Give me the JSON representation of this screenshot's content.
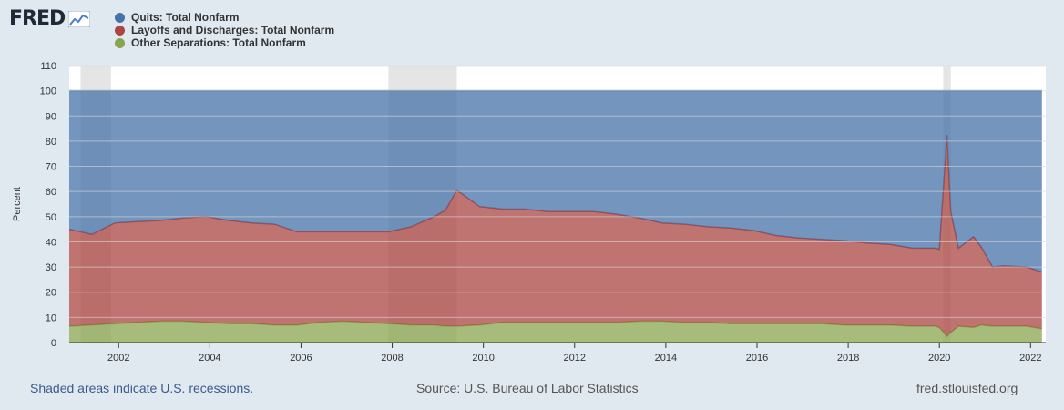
{
  "logo": {
    "text": "FRED",
    "icon": "line-graph-icon"
  },
  "legend": [
    {
      "label": "Quits: Total Nonfarm",
      "color": "#4572a7"
    },
    {
      "label": "Layoffs and Discharges: Total Nonfarm",
      "color": "#aa4643"
    },
    {
      "label": "Other Separations: Total Nonfarm",
      "color": "#89a54e"
    }
  ],
  "footer": {
    "recession_note": "Shaded areas indicate U.S. recessions.",
    "source": "Source: U.S. Bureau of Labor Statistics",
    "site": "fred.stlouisfed.org"
  },
  "chart_data": {
    "type": "area",
    "stacking": "percent",
    "ylabel": "Percent",
    "ylim": [
      0,
      110
    ],
    "yticks": [
      0,
      10,
      20,
      30,
      40,
      50,
      60,
      70,
      80,
      90,
      100,
      110
    ],
    "xlim": [
      "2000-12",
      "2022-05"
    ],
    "xticks": [
      "2002",
      "2004",
      "2006",
      "2008",
      "2010",
      "2012",
      "2014",
      "2016",
      "2018",
      "2020",
      "2022"
    ],
    "grid": true,
    "recessions": [
      {
        "start": "2001-03",
        "end": "2001-11"
      },
      {
        "start": "2007-12",
        "end": "2009-06"
      },
      {
        "start": "2020-02",
        "end": "2020-04"
      }
    ],
    "x": [
      "2000-12",
      "2001-06",
      "2001-12",
      "2002-06",
      "2002-12",
      "2003-06",
      "2003-12",
      "2004-06",
      "2004-12",
      "2005-06",
      "2005-12",
      "2006-06",
      "2006-12",
      "2007-06",
      "2007-12",
      "2008-06",
      "2008-12",
      "2009-03",
      "2009-06",
      "2009-12",
      "2010-06",
      "2010-12",
      "2011-06",
      "2011-12",
      "2012-06",
      "2012-12",
      "2013-06",
      "2013-12",
      "2014-06",
      "2014-12",
      "2015-06",
      "2015-12",
      "2016-06",
      "2016-12",
      "2017-06",
      "2017-12",
      "2018-06",
      "2018-12",
      "2019-06",
      "2019-12",
      "2020-01",
      "2020-03",
      "2020-04",
      "2020-06",
      "2020-10",
      "2020-12",
      "2021-03",
      "2021-06",
      "2021-12",
      "2022-04"
    ],
    "series": [
      {
        "name": "Other Separations: Total Nonfarm",
        "color": "#89a54e",
        "values": [
          6.5,
          7,
          7.5,
          8,
          8.5,
          8.5,
          8,
          7.5,
          7.5,
          7,
          7,
          8,
          8.5,
          8,
          7.5,
          7,
          7,
          6.5,
          6.5,
          7,
          8,
          8,
          8,
          8,
          8,
          8,
          8.5,
          8.5,
          8,
          8,
          7.5,
          7.5,
          7.5,
          7.5,
          7.5,
          7,
          7,
          7,
          6.5,
          6.5,
          6,
          2.5,
          4,
          6.5,
          6,
          7,
          6.5,
          6.5,
          6.5,
          5.5
        ]
      },
      {
        "name": "Layoffs and Discharges: Total Nonfarm",
        "color": "#aa4643",
        "values": [
          38.5,
          36,
          40,
          40,
          40,
          41,
          42,
          41,
          40,
          40,
          37,
          36,
          35.5,
          36,
          36.5,
          39,
          43,
          46,
          54,
          47,
          45,
          45,
          44,
          44,
          44,
          43,
          41,
          39,
          39,
          38,
          38,
          37,
          35,
          34,
          33.5,
          33.5,
          32.5,
          32,
          31,
          31,
          31,
          80,
          48,
          31,
          36,
          31,
          23.5,
          24,
          23.5,
          22.5
        ]
      },
      {
        "name": "Quits: Total Nonfarm",
        "color": "#4572a7",
        "values": [
          55,
          57,
          52.5,
          52,
          51.5,
          50.5,
          50,
          51.5,
          52.5,
          53,
          56,
          56,
          56,
          56,
          56,
          54,
          50,
          47.5,
          39.5,
          46,
          47,
          47,
          48,
          48,
          48,
          49,
          50.5,
          52.5,
          53,
          54,
          54.5,
          55.5,
          57.5,
          58.5,
          59,
          59.5,
          60.5,
          61,
          62.5,
          62.5,
          63,
          17.5,
          48,
          62.5,
          58,
          62,
          70,
          69.5,
          70,
          72
        ]
      }
    ]
  }
}
